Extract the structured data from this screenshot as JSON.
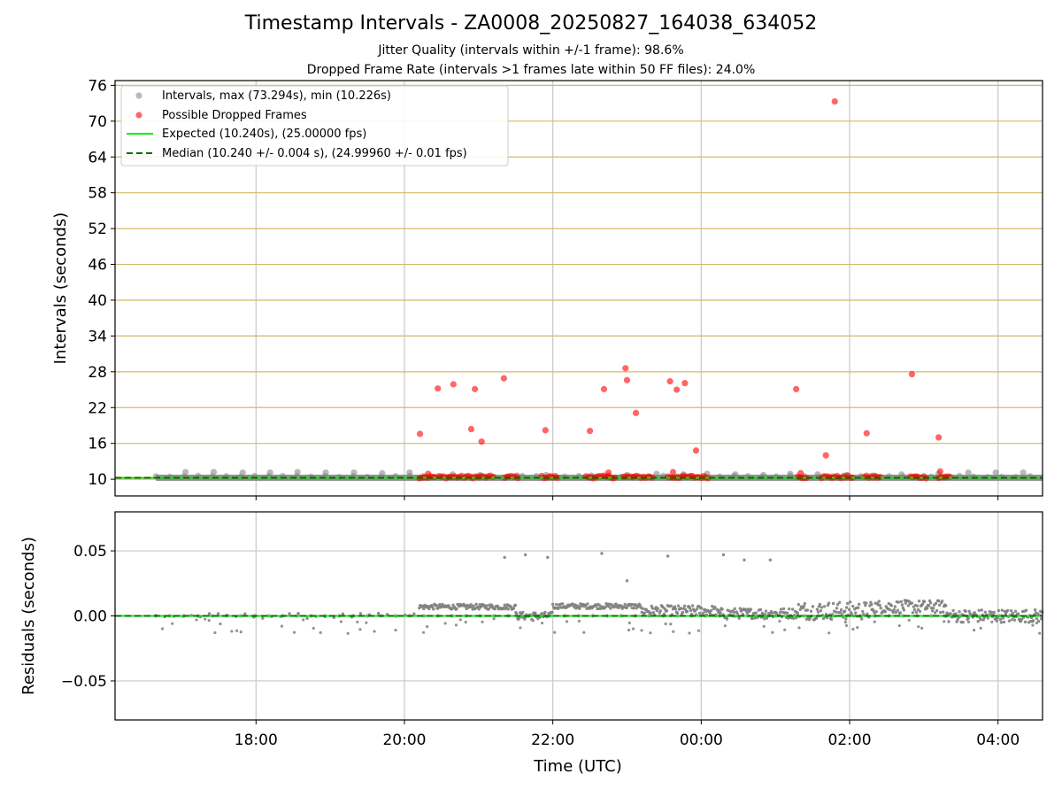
{
  "title": "Timestamp Intervals - ZA0008_20250827_164038_634052",
  "subtitle_jitter": "Jitter Quality (intervals within +/-1 frame): 98.6%",
  "subtitle_dropped": "Dropped Frame Rate (intervals >1 frames late within 50 FF files): 24.0%",
  "colors": {
    "intervals": "#808080",
    "dropped": "#ff0000",
    "expected": "#00ee00",
    "median": "#007000",
    "hgrid_top": "#d4b86a",
    "grid": "#c8c8c8"
  },
  "chart_data": [
    {
      "type": "scatter",
      "panel": "intervals",
      "ylabel": "Intervals (seconds)",
      "ylim": [
        7.2,
        76.8
      ],
      "xlim_hours": [
        16.1,
        28.6
      ],
      "yticks": [
        10,
        16,
        22,
        28,
        34,
        40,
        46,
        52,
        58,
        64,
        70,
        76
      ],
      "yticklabels": [
        "10",
        "16",
        "22",
        "28",
        "34",
        "40",
        "46",
        "52",
        "58",
        "64",
        "70",
        "76"
      ],
      "legend": {
        "position": "top-left",
        "intervals_label": "Intervals, max (73.294s), min (10.226s)",
        "dropped_label": "Possible Dropped Frames",
        "expected_label": "Expected (10.240s), (25.00000 fps)",
        "median_label": "Median (10.240 +/- 0.004 s), (24.99960 +/- 0.01 fps)"
      },
      "expected_value": 10.24,
      "median_value": 10.24,
      "baseline_band": {
        "start_hour": 16.65,
        "end_hour": 28.6,
        "value": 10.24
      },
      "interval_markers": {
        "x_hours": [
          17.05,
          17.43,
          17.82,
          18.19,
          18.56,
          18.94,
          19.32,
          19.7,
          20.07,
          20.65,
          21.02,
          21.52,
          21.91,
          22.52,
          23.0,
          23.4,
          23.76,
          24.08,
          24.46,
          24.84,
          25.2,
          25.57,
          25.96,
          26.32,
          26.7,
          27.2,
          27.6,
          27.97,
          28.34
        ],
        "y": [
          11.2,
          11.2,
          11.1,
          11.1,
          11.2,
          11.1,
          11.1,
          11.0,
          11.1,
          10.8,
          10.7,
          10.6,
          10.7,
          10.6,
          10.7,
          10.9,
          10.8,
          10.9,
          10.8,
          10.7,
          10.9,
          10.8,
          10.7,
          10.6,
          10.8,
          10.9,
          11.1,
          11.1,
          11.1
        ]
      },
      "dropped_clusters": [
        [
          20.2,
          20.42
        ],
        [
          20.47,
          21.22
        ],
        [
          21.35,
          21.55
        ],
        [
          21.85,
          22.08
        ],
        [
          22.45,
          22.85
        ],
        [
          22.95,
          23.35
        ],
        [
          23.55,
          24.1
        ],
        [
          25.3,
          25.45
        ],
        [
          25.62,
          26.05
        ],
        [
          26.2,
          26.42
        ],
        [
          26.82,
          27.05
        ],
        [
          27.2,
          27.38
        ]
      ],
      "dropped_outliers": {
        "x_hours": [
          20.21,
          20.45,
          20.66,
          20.9,
          20.95,
          21.04,
          21.34,
          21.9,
          22.5,
          22.69,
          22.98,
          23.0,
          23.12,
          23.58,
          23.67,
          23.78,
          23.93,
          25.28,
          25.68,
          25.8,
          26.23,
          26.84,
          27.2,
          27.22,
          20.32,
          22.75,
          23.62,
          25.34
        ],
        "y": [
          17.6,
          25.2,
          25.9,
          18.4,
          25.1,
          16.3,
          26.9,
          18.2,
          18.1,
          25.1,
          28.6,
          26.6,
          21.1,
          26.4,
          25.0,
          26.1,
          14.8,
          25.1,
          14.0,
          73.3,
          17.7,
          27.6,
          17.0,
          11.3,
          10.9,
          11.1,
          11.2,
          11.0
        ]
      }
    },
    {
      "type": "scatter",
      "panel": "residuals",
      "ylabel": "Residuals (seconds)",
      "xlabel": "Time (UTC)",
      "ylim": [
        -0.08,
        0.08
      ],
      "xlim_hours": [
        16.1,
        28.6
      ],
      "yticks": [
        0.05,
        0.0,
        -0.05
      ],
      "yticklabels": [
        "0.05",
        "0.00",
        "−0.05"
      ],
      "xticks_hours": [
        18,
        20,
        22,
        24,
        26,
        28
      ],
      "xticklabels": [
        "18:00",
        "20:00",
        "22:00",
        "00:00",
        "02:00",
        "04:00"
      ],
      "zero_line": 0.0,
      "segments": [
        {
          "start_hour": 16.65,
          "end_hour": 20.2,
          "level": 0.0,
          "spread": 0.002
        },
        {
          "start_hour": 20.2,
          "end_hour": 21.5,
          "level": 0.007,
          "spread": 0.002
        },
        {
          "start_hour": 21.5,
          "end_hour": 22.0,
          "level": 0.0,
          "spread": 0.003
        },
        {
          "start_hour": 22.0,
          "end_hour": 23.2,
          "level": 0.0075,
          "spread": 0.002
        },
        {
          "start_hour": 23.2,
          "end_hour": 24.2,
          "level": 0.004,
          "spread": 0.004
        },
        {
          "start_hour": 24.2,
          "end_hour": 25.3,
          "level": 0.002,
          "spread": 0.004
        },
        {
          "start_hour": 25.3,
          "end_hour": 26.3,
          "level": 0.004,
          "spread": 0.007
        },
        {
          "start_hour": 26.3,
          "end_hour": 27.3,
          "level": 0.007,
          "spread": 0.005
        },
        {
          "start_hour": 27.3,
          "end_hour": 28.6,
          "level": 0.0,
          "spread": 0.005
        }
      ],
      "outliers": {
        "x_hours": [
          21.35,
          21.63,
          21.93,
          22.66,
          23.0,
          23.55,
          24.3,
          24.58,
          24.93
        ],
        "y": [
          0.045,
          0.047,
          0.045,
          0.048,
          0.027,
          0.046,
          0.047,
          0.043,
          0.043
        ]
      }
    }
  ]
}
